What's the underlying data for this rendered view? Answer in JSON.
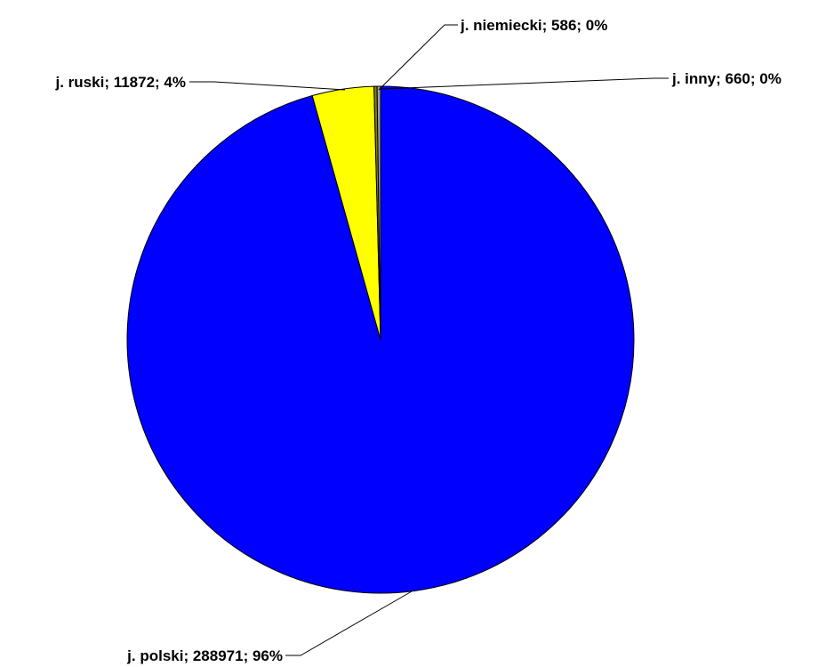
{
  "chart_data": {
    "type": "pie",
    "slices": [
      {
        "category": "j. polski",
        "value": 288971,
        "percent": "96%",
        "color": "#0000FF",
        "label": "j. polski; 288971; 96%"
      },
      {
        "category": "j. ruski",
        "value": 11872,
        "percent": "4%",
        "color": "#FFFF00",
        "label": "j. ruski; 11872; 4%"
      },
      {
        "category": "j. niemiecki",
        "value": 586,
        "percent": "0%",
        "color": "#808000",
        "label": "j. niemiecki; 586; 0%"
      },
      {
        "category": "j. inny",
        "value": 660,
        "percent": "0%",
        "color": "#A0A0A0",
        "label": "j. inny; 660; 0%"
      }
    ],
    "start_angle": "12 o'clock",
    "direction": "clockwise",
    "legend": false,
    "data_labels": "outside with leader lines"
  }
}
